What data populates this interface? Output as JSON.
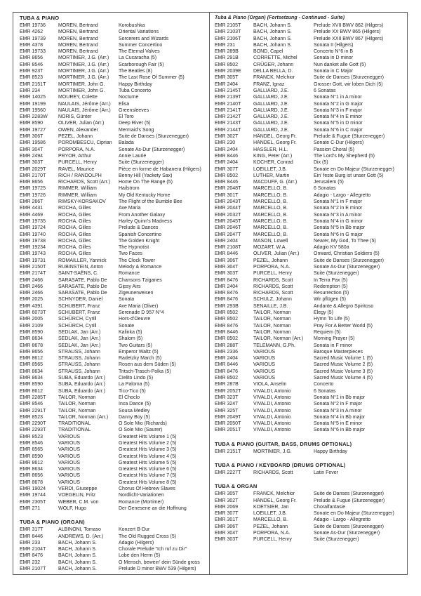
{
  "colors": {
    "background": "#ffffff",
    "border": "#5e5e5e",
    "text": "#262626"
  },
  "left": {
    "sections": [
      {
        "title": "TUBA & PIANO",
        "rows": [
          [
            "EMR 19736",
            "MOREN, Bertrand",
            "Korobushka"
          ],
          [
            "EMR 4262",
            "MOREN, Bertrand",
            "Oriental Variations"
          ],
          [
            "EMR 19739",
            "MOREN, Bertrand",
            "Sorcerers and Wizards"
          ],
          [
            "EMR 4378",
            "MOREN, Bertrand",
            "Summer Concertino"
          ],
          [
            "EMR 19733",
            "MOREN, Bertrand",
            "The Eternal Valves"
          ],
          [
            "EMR 8656",
            "MORTIMER, J.G. (Arr.)",
            "La Cucaracha (5)"
          ],
          [
            "EMR 8546",
            "MORTIMER, J.G. (Arr.)",
            "Scarborough Fair (5)"
          ],
          [
            "EMR 923T",
            "MORTIMER, J.G. (Arr.)",
            "The Beatles (8)"
          ],
          [
            "EMR 8523",
            "MORTIMER, J.G. (Arr.)",
            "The Last Rose Of Summer (5)"
          ],
          [
            "EMR 2151T",
            "MORTIMER, John G.",
            "Happy Birthday"
          ],
          [
            "EMR 234",
            "MORTIMER, John G.",
            "Tuba Concerto"
          ],
          [
            "EMR 14025",
            "MOUREY, Colette",
            "Nocturne"
          ],
          [
            "EMR 19199",
            "NAULAIS, Jérôme (Arr.)",
            "Elisa"
          ],
          [
            "EMR 19560",
            "NAULAIS, Jérôme (Arr.)",
            "Greensleeves"
          ],
          [
            "EMR 2283W",
            "NORIS, Günter",
            "El Toro"
          ],
          [
            "EMR 8590",
            "OLIVER, Julian (Arr.)",
            "Deep River (5)"
          ],
          [
            "EMR 19727",
            "OWEN, Alexander",
            "Mermaid's Song"
          ],
          [
            "EMR 306T",
            "PEZEL, Johann",
            "Suite de Danses (Sturzenegger)"
          ],
          [
            "EMR 19586",
            "POROMBESCU, Ciprian",
            "Balada"
          ],
          [
            "EMR 304T",
            "PORPORA, N.A.",
            "Sonate As-Dur (Sturzenegger)"
          ],
          [
            "EMR 2494",
            "PRYOR, Arthur",
            "Annie Laurie"
          ],
          [
            "EMR 303T",
            "PURCELL, Henry",
            "Suite (Sturzenegger)"
          ],
          [
            "EMR 2029T",
            "RAVEL, Maurice",
            "Pièce en forme de Habanera (Hilgers)"
          ],
          [
            "EMR 2170T",
            "RICH / RANDOLPH",
            "Benny Hill (Yackety Sax)"
          ],
          [
            "EMR 8656",
            "RICHARDS, Scott (Arr.)",
            "Home On The Range (5)"
          ],
          [
            "EMR 19725",
            "RIMMER, William",
            "Hailstrom"
          ],
          [
            "EMR 19726",
            "RIMMER, William",
            "My Old Kentucky Home"
          ],
          [
            "EMR 266T",
            "RIMSKY-KORSAKOV",
            "The Flight of the Bumble Bee"
          ],
          [
            "EMR 4431",
            "ROCHA, Gilles",
            "Ave Maria"
          ],
          [
            "EMR 4469",
            "ROCHA, Gilles",
            "From Another Galaxy"
          ],
          [
            "EMR 19735",
            "ROCHA, Gilles",
            "Harley Quinn's Madness"
          ],
          [
            "EMR 19724",
            "ROCHA, Gilles",
            "Prelude & Dances"
          ],
          [
            "EMR 19740",
            "ROCHA, Gilles",
            "Spanish Concertino"
          ],
          [
            "EMR 19738",
            "ROCHA, Gilles",
            "The Golden Knight"
          ],
          [
            "EMR 19234",
            "ROCHA, Gilles",
            "The Hypnotist"
          ],
          [
            "EMR 19743",
            "ROCHA, Gilles",
            "Two Faces"
          ],
          [
            "EMR 19731",
            "ROMAILLER, Yannick",
            "The Clock Tower"
          ],
          [
            "EMR 2150T",
            "RUBINSTEIN, Anton",
            "Melody & Romance"
          ],
          [
            "EMR 2174T",
            "SAINT-SAËNS, C.",
            "Romance"
          ],
          [
            "EMR 2466",
            "SARASATE, Pablo De",
            "Chansons Tziganes"
          ],
          [
            "EMR 2466",
            "SARASATE, Pablo De",
            "Gipsy Airs"
          ],
          [
            "EMR 2466",
            "SARASATE, Pablo De",
            "Zigeunerweisen"
          ],
          [
            "EMR 2025",
            "SCHNYDER, Daniel",
            "Sonata"
          ],
          [
            "EMR 4391",
            "SCHUBERT, Franz",
            "Ave Maria (Oliver)"
          ],
          [
            "EMR 6073T",
            "SCHUBERT, Franz",
            "Serenade D 957 N°4"
          ],
          [
            "EMR 2005",
            "SCHÜRCH, Cyrill",
            "Hors-d'Oeuvre"
          ],
          [
            "EMR 2109",
            "SCHÜRCH, Cyrill",
            "Sonate"
          ],
          [
            "EMR 8590",
            "SEDLAK, Jan (Arr.)",
            "Kalinka (5)"
          ],
          [
            "EMR 8634",
            "SEDLAK, Jan (Arr.)",
            "Shalom (5)"
          ],
          [
            "EMR 8678",
            "SEDLAK, Jan (Arr.)",
            "Two Guitars (5)"
          ],
          [
            "EMR 8656",
            "STRAUSS, Johann",
            "Emperor Waltz (5)"
          ],
          [
            "EMR 8612",
            "STRAUSS, Johann",
            "Radetzky March (5)"
          ],
          [
            "EMR 8565",
            "STRAUSS, Johann",
            "Rosen aus dem Süden (5)"
          ],
          [
            "EMR 8634",
            "STRAUSS, Johann",
            "Tritsch-Trasch-Polka (5)"
          ],
          [
            "EMR 8634",
            "SUBA, Eduardo (Arr.)",
            "Cielito Lindo (5)"
          ],
          [
            "EMR 8590",
            "SUBA, Eduardo (Arr.)",
            "La Paloma (5)"
          ],
          [
            "EMR 8612",
            "SUBA, Eduardo (Arr.)",
            "Tico-Tico (5)"
          ],
          [
            "EMR 2285T",
            "TAILOR, Norman",
            "El Choclo"
          ],
          [
            "EMR 8546",
            "TAILOR, Norman",
            "Inca Dance (5)"
          ],
          [
            "EMR 2291T",
            "TAILOR, Norman",
            "Sousa Medley"
          ],
          [
            "EMR 8523",
            "TAILOR, Norman (Arr.)",
            "Danny Boy (5)"
          ],
          [
            "EMR 2290T",
            "TRADITIONAL",
            "O Sole Mio (Richards)"
          ],
          [
            "EMR 2293T",
            "TRADITIONAL",
            "O Sole Mio (Saurer)"
          ],
          [
            "EMR 8523",
            "VARIOUS",
            "Greatest Hits Volume 1 (5)"
          ],
          [
            "EMR 8546",
            "VARIOUS",
            "Greatest Hits Volume 2 (5)"
          ],
          [
            "EMR 8565",
            "VARIOUS",
            "Greatest Hits Volume 3 (5)"
          ],
          [
            "EMR 8590",
            "VARIOUS",
            "Greatest Hits Volume 4 (5)"
          ],
          [
            "EMR 8612",
            "VARIOUS",
            "Greatest Hits Volume 5 (5)"
          ],
          [
            "EMR 8634",
            "VARIOUS",
            "Greatest Hits Volume 6 (5)"
          ],
          [
            "EMR 8656",
            "VARIOUS",
            "Greatest Hits Volume 7 (5)"
          ],
          [
            "EMR 8678",
            "VARIOUS",
            "Greatest Hits Volume 8 (5)"
          ],
          [
            "EMR 19024",
            "VERDI, Giuseppe",
            "Chorus Of Hebrew Slaves"
          ],
          [
            "EMR 19744",
            "VOEGELIN, Fritz",
            "Nordlicht-Variationen"
          ],
          [
            "EMR 2305T",
            "WEBER, C.M. von",
            "Romance (Mortimer)"
          ],
          [
            "EMR 271",
            "WOLF, Hugo",
            "Der Genesene an die Hoffnung"
          ]
        ]
      },
      {
        "title": "TUBA & PIANO (ORGAN)",
        "rows": [
          [
            "EMR 317T",
            "ALBINONI, Tomaso",
            "Konzert B-Dur"
          ],
          [
            "EMR 8446",
            "ANDREWS, D. (Arr.)",
            "The Old Rugged Cross (5)"
          ],
          [
            "EMR 233",
            "BACH, Johann S.",
            "Adagio (Hilgers)"
          ],
          [
            "EMR 2104T",
            "BACH, Johann S.",
            "Chorale Prelude \"Ich ruf zu Dir\""
          ],
          [
            "EMR 8476",
            "BACH, Johann S.",
            "Lobe den Herrn (5)"
          ],
          [
            "EMR 232",
            "BACH, Johann S.",
            "O Mensch, bewein' dein Sünde gross"
          ],
          [
            "EMR 2107T",
            "BACH, Johann S.",
            "Prelude D minor BWV 539 (Hilgers)"
          ]
        ]
      }
    ]
  },
  "right": {
    "sections": [
      {
        "title": "Tuba & Piano (Organ) (Fortsetzung - Continued - Suite)",
        "rows": [
          [
            "EMR 2105T",
            "BACH, Johann S.",
            "Prelude XVII BWV 862 (Hilgers)"
          ],
          [
            "EMR 2103T",
            "BACH, Johann S.",
            "Prelude XX BWV 865 (Hilgers)"
          ],
          [
            "EMR 2106T",
            "BACH, Johann S.",
            "Prelude XXII BWV 867 (Hilgers)"
          ],
          [
            "EMR 231",
            "BACH, Johann S.",
            "Sonata II (Hilgers)"
          ],
          [
            "EMR 289B",
            "BOND, Capel",
            "Concerto N°6 in B"
          ],
          [
            "EMR 291B",
            "CORRETTE, Michel",
            "Sonata in D minor"
          ],
          [
            "EMR 8502",
            "CRÜGER, Johann",
            "Nun danket alle Gott (5)"
          ],
          [
            "EMR 2039E",
            "DELLA BELLA, D.",
            "Sonata in C Major"
          ],
          [
            "EMR 305T",
            "FRANCK, Melchior",
            "Suite de Danses (Sturzenegger)"
          ],
          [
            "EMR 2404",
            "FRANZ, Ignaz",
            "Grosser Gott, wir loben Dich (5)"
          ],
          [
            "EMR 2145T",
            "GALLIARD, J.E.",
            "6 Sonatas"
          ],
          [
            "EMR 2139T",
            "GALLIARD, J.E.",
            "Sonata N°1 in A minor"
          ],
          [
            "EMR 2140T",
            "GALLIARD, J.E.",
            "Sonata N°2 in G major"
          ],
          [
            "EMR 2141T",
            "GALLIARD, J.E.",
            "Sonata N°3 in F major"
          ],
          [
            "EMR 2142T",
            "GALLIARD, J.E.",
            "Sonata N°4 in E minor"
          ],
          [
            "EMR 2143T",
            "GALLIARD, J.E.",
            "Sonata N°5 in D minor"
          ],
          [
            "EMR 2144T",
            "GALLIARD, J.E.",
            "Sonata N°6 in C major"
          ],
          [
            "EMR 302T",
            "HÄNDEL, Georg Fr.",
            "Prelude & Fugue (Sturzenegger)"
          ],
          [
            "EMR 230",
            "HÄNDEL, Georg Fr.",
            "Sonate C-Dur (Hilgers)"
          ],
          [
            "EMR 2404",
            "HASSLER, H.L.",
            "Passion Choral (5)"
          ],
          [
            "EMR 8446",
            "KING, Peter (Arr.)",
            "The Lord's My Shepherd (5)"
          ],
          [
            "EMR 2404",
            "KOCHER, Conrad",
            "Dix (5)"
          ],
          [
            "EMR 307T",
            "LOEILLET, J.B.",
            "Sonate en Do Majeur (Sturzenegger)"
          ],
          [
            "EMR 8502",
            "LUTHER, Martin",
            "Ein' feste Burg ist unser Gott (5)"
          ],
          [
            "EMR 8446",
            "MACDUFF, G. (Arr.)",
            "Jerusalem (5)"
          ],
          [
            "EMR 2048T",
            "MARCELLO, B.",
            "6 Sonatas"
          ],
          [
            "EMR 301T",
            "MARCELLO, B.",
            "Adagio - Largo - Allegretto"
          ],
          [
            "EMR 2043T",
            "MARCELLO, B.",
            "Sonata N°1 in F major"
          ],
          [
            "EMR 2044T",
            "MARCELLO, B.",
            "Sonata N°2 in E minor"
          ],
          [
            "EMR 2032T",
            "MARCELLO, B.",
            "Sonata N°3 in A minor"
          ],
          [
            "EMR 2045T",
            "MARCELLO, B.",
            "Sonata N°4 in G minor"
          ],
          [
            "EMR 2046T",
            "MARCELLO, B.",
            "Sonata N°5 in Bb major"
          ],
          [
            "EMR 2047T",
            "MARCELLO, B.",
            "Sonata N°6 in G major"
          ],
          [
            "EMR 2404",
            "MASON, Lowell",
            "Nearer, My God, To Thee (5)"
          ],
          [
            "EMR 2108T",
            "MOZART, W.A.",
            "Adagio KV 580a"
          ],
          [
            "EMR 8446",
            "OLIVER, Julian (Arr.)",
            "Onward, Christian Soldiers (5)"
          ],
          [
            "EMR 306T",
            "PEZEL, Johann",
            "Suite de Danses (Sturzenegger)"
          ],
          [
            "EMR 304T",
            "PORPORA, N.A.",
            "Sonate As-Dur (Sturzenegger)"
          ],
          [
            "EMR 303T",
            "PURCELL, Henry",
            "Suite (Sturzenegger)"
          ],
          [
            "EMR 8476",
            "RICHARDS, Scott",
            "In Terra Pax (5)"
          ],
          [
            "EMR 2404",
            "RICHARDS, Scott",
            "Redemption (5)"
          ],
          [
            "EMR 8476",
            "RICHARDS, Scott",
            "Resurrection (5)"
          ],
          [
            "EMR 8476",
            "SCHULZ, Johann",
            "Wir pflügen (5)"
          ],
          [
            "EMR 293B",
            "SENAILLE, J.B.",
            "Andante & Allegro Spiritoso"
          ],
          [
            "EMR 8502",
            "TAILOR, Norman",
            "Elegy (5)"
          ],
          [
            "EMR 8502",
            "TAILOR, Norman",
            "Hymn To Life (5)"
          ],
          [
            "EMR 8476",
            "TAILOR, Norman",
            "Pray For A Better World (5)"
          ],
          [
            "EMR 8446",
            "TAILOR, Norman",
            "Requiem (5)"
          ],
          [
            "EMR 8502",
            "TAILOR, Norman (Arr.)",
            "Morning Prayer (5)"
          ],
          [
            "EMR 288T",
            "TELEMANN, G.Ph.",
            "Sonata in F minor"
          ],
          [
            "EMR 2336",
            "VARIOUS",
            "Baroque Masterpieces"
          ],
          [
            "EMR 2404",
            "VARIOUS",
            "Sacred Music Volume 1 (5)"
          ],
          [
            "EMR 8446",
            "VARIOUS",
            "Sacred Music Volume 2 (5)"
          ],
          [
            "EMR 8476",
            "VARIOUS",
            "Sacred Music Volume 3 (5)"
          ],
          [
            "EMR 8502",
            "VARIOUS",
            "Sacred Music Volume 4 (5)"
          ],
          [
            "EMR 287B",
            "VIOLA, Anselm",
            "Concerto"
          ],
          [
            "EMR 2052T",
            "VIVALDI, Antonio",
            "6 Sonatas"
          ],
          [
            "EMR 323T",
            "VIVALDI, Antonio",
            "Sonata N°1 in Bb major"
          ],
          [
            "EMR 324T",
            "VIVALDI, Antonio",
            "Sonata N°2 in F major"
          ],
          [
            "EMR 325T",
            "VIVALDI, Antonio",
            "Sonata N°3 in A minor"
          ],
          [
            "EMR 2049T",
            "VIVALDI, Antonio",
            "Sonata N°4 in Bb major"
          ],
          [
            "EMR 2050T",
            "VIVALDI, Antonio",
            "Sonata N°5 in E minor"
          ],
          [
            "EMR 2051T",
            "VIVALDI, Antonio",
            "Sonata N°6 in Bb major"
          ]
        ]
      },
      {
        "title": "TUBA & PIANO (GUITAR, BASS, DRUMS OPTIONAL)",
        "rows": [
          [
            "EMR 2151T",
            "MORTIMER, J.G.",
            "Happy Birthday"
          ]
        ]
      },
      {
        "title": "TUBA & PIANO / KEYBOARD (DRUMS OPTIONAL)",
        "rows": [
          [
            "EMR 2227T",
            "RICHARDS, Scott",
            "Latin Fever"
          ]
        ]
      },
      {
        "title": "TUBA & ORGAN",
        "rows": [
          [
            "EMR 305T",
            "FRANCK, Melchior",
            "Suite de Danses (Sturzenegger)"
          ],
          [
            "EMR 302T",
            "HÄNDEL, Georg Fr.",
            "Prelude & Fugue (Sturzenegger)"
          ],
          [
            "EMR 2069",
            "KOETSIER, Jan",
            "Choralfantasie"
          ],
          [
            "EMR 307T",
            "LOEILLET, J.B.",
            "Sonate en Do Majeur (Sturzenegger)"
          ],
          [
            "EMR 301T",
            "MARCELLO, B.",
            "Adagio - Largo - Allegretto"
          ],
          [
            "EMR 306T",
            "PEZEL, Johann",
            "Suite de Danses (Sturzenegger)"
          ],
          [
            "EMR 304T",
            "PORPORA, N.A.",
            "Sonate As-Dur (Sturzenegger)"
          ],
          [
            "EMR 303T",
            "PURCELL, Henry",
            "Suite (Sturzenegger)"
          ]
        ]
      }
    ]
  }
}
